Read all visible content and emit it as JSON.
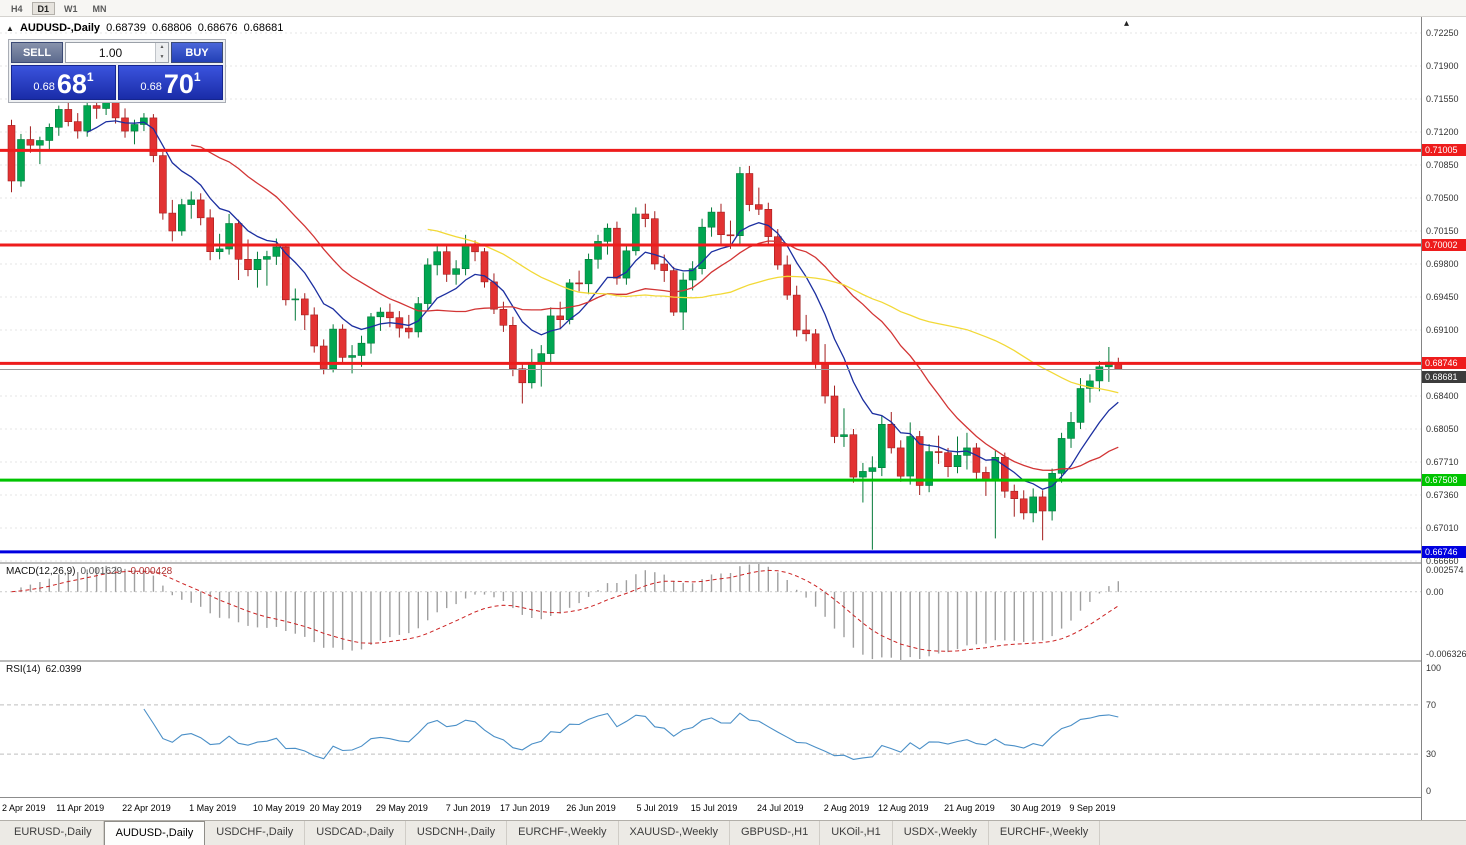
{
  "toolbar": {
    "buttons": [
      {
        "label": "H4",
        "active": false
      },
      {
        "label": "D1",
        "active": true
      },
      {
        "label": "W1",
        "active": false
      },
      {
        "label": "MN",
        "active": false
      }
    ]
  },
  "icons": {
    "collapse": "▲",
    "spin_up": "▲",
    "spin_down": "▼",
    "shift_marker": "▴"
  },
  "chart": {
    "title": {
      "symbol": "AUDUSD-,Daily",
      "open": "0.68739",
      "high": "0.68806",
      "low": "0.68676",
      "close": "0.68681"
    },
    "trade_panel": {
      "sell_label": "SELL",
      "buy_label": "BUY",
      "volume": "1.00",
      "sell_price_small": "0.68",
      "sell_price_big": "68",
      "sell_price_sup": "1",
      "buy_price_small": "0.68",
      "buy_price_big": "70",
      "buy_price_sup": "1"
    }
  },
  "colors": {
    "bull": "#00a651",
    "bull_border": "#047a39",
    "bear": "#e23232",
    "bear_border": "#a31d1d",
    "grid": "#e4e4e4",
    "bid_line": "#9a9a9a"
  },
  "chart_data": {
    "type": "candlestick",
    "symbol": "AUDUSD-",
    "timeframe": "Daily",
    "y_axis": {
      "top_value": 0.7225,
      "step": 0.0035,
      "ticks": [
        "0.72250",
        "0.71900",
        "0.71550",
        "0.71200",
        "0.70850",
        "0.70500",
        "0.70150",
        "0.69800",
        "0.69450",
        "0.69100",
        "0.68750",
        "0.68400",
        "0.68050",
        "0.67710",
        "0.67360",
        "0.67010",
        "0.66660"
      ]
    },
    "current_price": {
      "value": 0.68681,
      "label": "0.68681",
      "label_bg": "#3c3c3c"
    },
    "hlines": [
      {
        "price": 0.71005,
        "label": "0.71005",
        "color": "#ee1c1c",
        "width": 3
      },
      {
        "price": 0.70002,
        "label": "0.70002",
        "color": "#ee1c1c",
        "width": 3
      },
      {
        "price": 0.68746,
        "label": "0.68746",
        "color": "#ee1c1c",
        "width": 3
      },
      {
        "price": 0.67508,
        "label": "0.67508",
        "color": "#00c400",
        "width": 3
      },
      {
        "price": 0.66746,
        "label": "0.66746",
        "color": "#0000e0",
        "width": 3
      }
    ],
    "overlays": [
      {
        "name": "ma-fast-blue",
        "method": "ema",
        "period": 9,
        "color": "#1c2fa0"
      },
      {
        "name": "ma-mid-red",
        "method": "sma",
        "period": 20,
        "color": "#d23535"
      },
      {
        "name": "ma-slow-yellow",
        "method": "sma",
        "period": 45,
        "color": "#f2d937"
      }
    ],
    "x_axis_labels": [
      {
        "label": "2 Apr 2019",
        "i": 0
      },
      {
        "label": "11 Apr 2019",
        "i": 7
      },
      {
        "label": "22 Apr 2019",
        "i": 14
      },
      {
        "label": "1 May 2019",
        "i": 21
      },
      {
        "label": "10 May 2019",
        "i": 28
      },
      {
        "label": "20 May 2019",
        "i": 34
      },
      {
        "label": "29 May 2019",
        "i": 41
      },
      {
        "label": "7 Jun 2019",
        "i": 48
      },
      {
        "label": "17 Jun 2019",
        "i": 54
      },
      {
        "label": "26 Jun 2019",
        "i": 61
      },
      {
        "label": "5 Jul 2019",
        "i": 68
      },
      {
        "label": "15 Jul 2019",
        "i": 74
      },
      {
        "label": "24 Jul 2019",
        "i": 81
      },
      {
        "label": "2 Aug 2019",
        "i": 88
      },
      {
        "label": "12 Aug 2019",
        "i": 94
      },
      {
        "label": "21 Aug 2019",
        "i": 101
      },
      {
        "label": "30 Aug 2019",
        "i": 108
      },
      {
        "label": "9 Sep 2019",
        "i": 114
      }
    ],
    "candles": [
      [
        0.7127,
        0.7133,
        0.7056,
        0.7068
      ],
      [
        0.7068,
        0.7118,
        0.7062,
        0.7112
      ],
      [
        0.7112,
        0.7126,
        0.7098,
        0.7106
      ],
      [
        0.7106,
        0.7115,
        0.7086,
        0.7111
      ],
      [
        0.7111,
        0.7129,
        0.7102,
        0.7125
      ],
      [
        0.7125,
        0.7148,
        0.7116,
        0.7144
      ],
      [
        0.7144,
        0.7153,
        0.7126,
        0.7131
      ],
      [
        0.7131,
        0.714,
        0.7113,
        0.7121
      ],
      [
        0.7121,
        0.7153,
        0.7115,
        0.7148
      ],
      [
        0.7148,
        0.7156,
        0.7134,
        0.7145
      ],
      [
        0.7145,
        0.7162,
        0.7138,
        0.7156
      ],
      [
        0.7156,
        0.7165,
        0.7129,
        0.7135
      ],
      [
        0.7135,
        0.7145,
        0.7114,
        0.7121
      ],
      [
        0.7121,
        0.7133,
        0.7107,
        0.7128
      ],
      [
        0.7128,
        0.714,
        0.7121,
        0.7135
      ],
      [
        0.7135,
        0.7139,
        0.7088,
        0.7095
      ],
      [
        0.7095,
        0.7099,
        0.7027,
        0.7034
      ],
      [
        0.7034,
        0.7048,
        0.7004,
        0.7015
      ],
      [
        0.7015,
        0.7049,
        0.701,
        0.7043
      ],
      [
        0.7043,
        0.7057,
        0.7028,
        0.7048
      ],
      [
        0.7048,
        0.7055,
        0.7021,
        0.7029
      ],
      [
        0.7029,
        0.7038,
        0.6984,
        0.6993
      ],
      [
        0.6993,
        0.7012,
        0.6985,
        0.6996
      ],
      [
        0.6996,
        0.7033,
        0.699,
        0.7023
      ],
      [
        0.7023,
        0.7027,
        0.6963,
        0.6985
      ],
      [
        0.6985,
        0.7006,
        0.6967,
        0.6974
      ],
      [
        0.6974,
        0.6993,
        0.6955,
        0.6985
      ],
      [
        0.6985,
        0.6994,
        0.6957,
        0.6988
      ],
      [
        0.6988,
        0.7007,
        0.6979,
        0.6998
      ],
      [
        0.6998,
        0.7001,
        0.6936,
        0.6942
      ],
      [
        0.6942,
        0.6954,
        0.692,
        0.6943
      ],
      [
        0.6943,
        0.6949,
        0.691,
        0.6926
      ],
      [
        0.6926,
        0.6934,
        0.6886,
        0.6893
      ],
      [
        0.6893,
        0.69,
        0.6863,
        0.6869
      ],
      [
        0.6869,
        0.6916,
        0.6865,
        0.6911
      ],
      [
        0.6911,
        0.6916,
        0.6876,
        0.6881
      ],
      [
        0.6881,
        0.6894,
        0.6864,
        0.6883
      ],
      [
        0.6883,
        0.6904,
        0.6871,
        0.6896
      ],
      [
        0.6896,
        0.6928,
        0.6885,
        0.6924
      ],
      [
        0.6924,
        0.6934,
        0.6909,
        0.6929
      ],
      [
        0.6929,
        0.6938,
        0.6913,
        0.6923
      ],
      [
        0.6923,
        0.693,
        0.6902,
        0.6912
      ],
      [
        0.6912,
        0.6926,
        0.6901,
        0.6908
      ],
      [
        0.6908,
        0.6945,
        0.6902,
        0.6938
      ],
      [
        0.6938,
        0.6986,
        0.6932,
        0.6979
      ],
      [
        0.6979,
        0.7001,
        0.6968,
        0.6993
      ],
      [
        0.6993,
        0.7,
        0.6961,
        0.6969
      ],
      [
        0.6969,
        0.6984,
        0.6958,
        0.6975
      ],
      [
        0.6975,
        0.7011,
        0.6968,
        0.6999
      ],
      [
        0.6999,
        0.7005,
        0.6983,
        0.6993
      ],
      [
        0.6993,
        0.6997,
        0.6955,
        0.6961
      ],
      [
        0.6961,
        0.697,
        0.6927,
        0.6932
      ],
      [
        0.6932,
        0.694,
        0.6908,
        0.6915
      ],
      [
        0.6915,
        0.6924,
        0.6861,
        0.6869
      ],
      [
        0.6869,
        0.6876,
        0.6832,
        0.6854
      ],
      [
        0.6854,
        0.689,
        0.6848,
        0.6875
      ],
      [
        0.6875,
        0.6894,
        0.685,
        0.6885
      ],
      [
        0.6885,
        0.6934,
        0.6876,
        0.6925
      ],
      [
        0.6925,
        0.694,
        0.6911,
        0.6921
      ],
      [
        0.6921,
        0.6964,
        0.6916,
        0.696
      ],
      [
        0.696,
        0.6973,
        0.6951,
        0.6959
      ],
      [
        0.6959,
        0.6991,
        0.6948,
        0.6985
      ],
      [
        0.6985,
        0.7011,
        0.6975,
        0.7004
      ],
      [
        0.7004,
        0.7023,
        0.699,
        0.7018
      ],
      [
        0.7018,
        0.7025,
        0.6958,
        0.6965
      ],
      [
        0.6965,
        0.7001,
        0.6958,
        0.6994
      ],
      [
        0.6994,
        0.704,
        0.6989,
        0.7033
      ],
      [
        0.7033,
        0.7044,
        0.7019,
        0.7028
      ],
      [
        0.7028,
        0.7036,
        0.6974,
        0.698
      ],
      [
        0.698,
        0.699,
        0.6961,
        0.6973
      ],
      [
        0.6973,
        0.6977,
        0.6925,
        0.6929
      ],
      [
        0.6929,
        0.6971,
        0.691,
        0.6963
      ],
      [
        0.6963,
        0.6983,
        0.6952,
        0.6975
      ],
      [
        0.6975,
        0.7028,
        0.6969,
        0.7019
      ],
      [
        0.7019,
        0.704,
        0.7009,
        0.7035
      ],
      [
        0.7035,
        0.7044,
        0.7,
        0.7011
      ],
      [
        0.7011,
        0.7026,
        0.6996,
        0.701
      ],
      [
        0.701,
        0.7083,
        0.7001,
        0.7076
      ],
      [
        0.7076,
        0.7084,
        0.7036,
        0.7043
      ],
      [
        0.7043,
        0.7061,
        0.7032,
        0.7038
      ],
      [
        0.7038,
        0.7045,
        0.7,
        0.7009
      ],
      [
        0.7009,
        0.7017,
        0.6974,
        0.6979
      ],
      [
        0.6979,
        0.6989,
        0.6942,
        0.6947
      ],
      [
        0.6947,
        0.6957,
        0.6903,
        0.691
      ],
      [
        0.691,
        0.6926,
        0.6898,
        0.6906
      ],
      [
        0.6906,
        0.6911,
        0.6869,
        0.6874
      ],
      [
        0.6874,
        0.6895,
        0.6832,
        0.684
      ],
      [
        0.684,
        0.6851,
        0.679,
        0.6797
      ],
      [
        0.6797,
        0.6827,
        0.6786,
        0.6799
      ],
      [
        0.6799,
        0.6805,
        0.6748,
        0.6754
      ],
      [
        0.6754,
        0.6769,
        0.6727,
        0.676
      ],
      [
        0.676,
        0.6776,
        0.6677,
        0.6764
      ],
      [
        0.6764,
        0.6819,
        0.6755,
        0.681
      ],
      [
        0.681,
        0.6823,
        0.6779,
        0.6785
      ],
      [
        0.6785,
        0.6793,
        0.6749,
        0.6755
      ],
      [
        0.6755,
        0.6812,
        0.6746,
        0.6797
      ],
      [
        0.6797,
        0.6803,
        0.6735,
        0.6745
      ],
      [
        0.6745,
        0.6789,
        0.6738,
        0.6781
      ],
      [
        0.6781,
        0.6798,
        0.6768,
        0.678
      ],
      [
        0.678,
        0.6785,
        0.6754,
        0.6765
      ],
      [
        0.6765,
        0.6797,
        0.6758,
        0.6777
      ],
      [
        0.6777,
        0.6801,
        0.6762,
        0.6785
      ],
      [
        0.6785,
        0.679,
        0.675,
        0.6759
      ],
      [
        0.6759,
        0.6765,
        0.6734,
        0.6751
      ],
      [
        0.6751,
        0.6782,
        0.6689,
        0.6775
      ],
      [
        0.6775,
        0.678,
        0.6732,
        0.6739
      ],
      [
        0.6739,
        0.6746,
        0.6712,
        0.6731
      ],
      [
        0.6731,
        0.674,
        0.6709,
        0.6716
      ],
      [
        0.6716,
        0.6742,
        0.6706,
        0.6733
      ],
      [
        0.6733,
        0.674,
        0.6687,
        0.6718
      ],
      [
        0.6718,
        0.6763,
        0.6708,
        0.6758
      ],
      [
        0.6758,
        0.6801,
        0.6748,
        0.6795
      ],
      [
        0.6795,
        0.6823,
        0.6785,
        0.6812
      ],
      [
        0.6812,
        0.6859,
        0.6805,
        0.6848
      ],
      [
        0.6848,
        0.6863,
        0.6833,
        0.6856
      ],
      [
        0.6856,
        0.6877,
        0.6845,
        0.6871
      ],
      [
        0.6871,
        0.6892,
        0.6855,
        0.6876
      ],
      [
        0.68739,
        0.68806,
        0.68676,
        0.68681
      ]
    ],
    "indicators": [
      {
        "name": "macd",
        "title": "MACD(12,26,9)",
        "value_main": "0.001629",
        "value_signal": "-0.000428",
        "fast": 12,
        "slow": 26,
        "signal": 9,
        "scale_max": 0.002574,
        "scale_min": -0.006326,
        "scale_labels": [
          "0.002574",
          "0.00",
          "-0.006326"
        ],
        "histogram_color": "#9f9f9f",
        "signal_color": "#cc2222"
      },
      {
        "name": "rsi",
        "title": "RSI(14)",
        "value": "62.0399",
        "period": 14,
        "levels": [
          70,
          30
        ],
        "scale_labels": [
          "100",
          "70",
          "30",
          "0"
        ],
        "line_color": "#4a8fc7"
      }
    ]
  },
  "bottom_tabs": {
    "active_index": 1,
    "items": [
      "EURUSD-,Daily",
      "AUDUSD-,Daily",
      "USDCHF-,Daily",
      "USDCAD-,Daily",
      "USDCNH-,Daily",
      "EURCHF-,Weekly",
      "XAUUSD-,Weekly",
      "GBPUSD-,H1",
      "UKOil-,H1",
      "USDX-,Weekly",
      "EURCHF-,Weekly"
    ]
  }
}
